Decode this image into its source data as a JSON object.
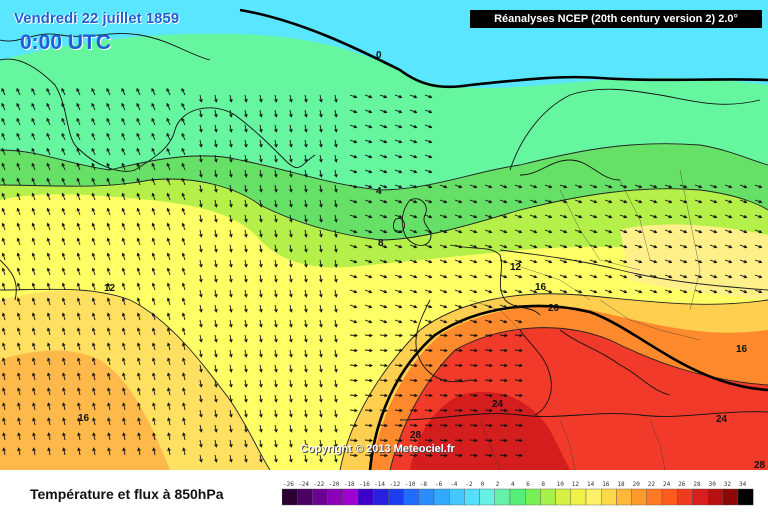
{
  "header": {
    "date": "Vendredi 22 juillet 1859",
    "time": "0:00 UTC",
    "model": "Réanalyses NCEP (20th century version 2) 2.0°"
  },
  "footer": {
    "title": "Température et flux à 850hPa",
    "copyright": "Copyright © 2013 Meteociel.fr"
  },
  "isotherm_labels": [
    "0",
    "4",
    "8",
    "12",
    "12",
    "16",
    "16",
    "16",
    "20",
    "24",
    "24",
    "28",
    "28"
  ],
  "legend": {
    "values": [
      "-26",
      "-24",
      "-22",
      "-20",
      "-18",
      "-16",
      "-14",
      "-12",
      "-10",
      "-8",
      "-6",
      "-4",
      "-2",
      "0",
      "2",
      "4",
      "6",
      "8",
      "10",
      "12",
      "14",
      "16",
      "18",
      "20",
      "22",
      "24",
      "26",
      "28",
      "30",
      "32",
      "34"
    ],
    "colors": [
      "#2b0033",
      "#4b0063",
      "#6a0094",
      "#8b00b8",
      "#a000d0",
      "#3c00c8",
      "#2a1fe0",
      "#1d3df0",
      "#1f6cff",
      "#2a8cff",
      "#33a8ff",
      "#44c6ff",
      "#55dfff",
      "#66f0e6",
      "#66f0a8",
      "#55ee77",
      "#77f055",
      "#a6f04a",
      "#d6f048",
      "#f0f048",
      "#fff06a",
      "#ffd84a",
      "#ffb838",
      "#ff9a2a",
      "#ff7a22",
      "#ff5a1e",
      "#f03a1e",
      "#d81e1e",
      "#b81010",
      "#8a0808",
      "#000000"
    ]
  },
  "colors": {
    "title_blue": "#1f5fd6",
    "ocean_cyan": "#5ae6ff",
    "cool_green": "#66f6a0",
    "green": "#66e066",
    "yellow": "#ffff66",
    "orange": "#ffb84a",
    "red": "#f23a2a"
  }
}
